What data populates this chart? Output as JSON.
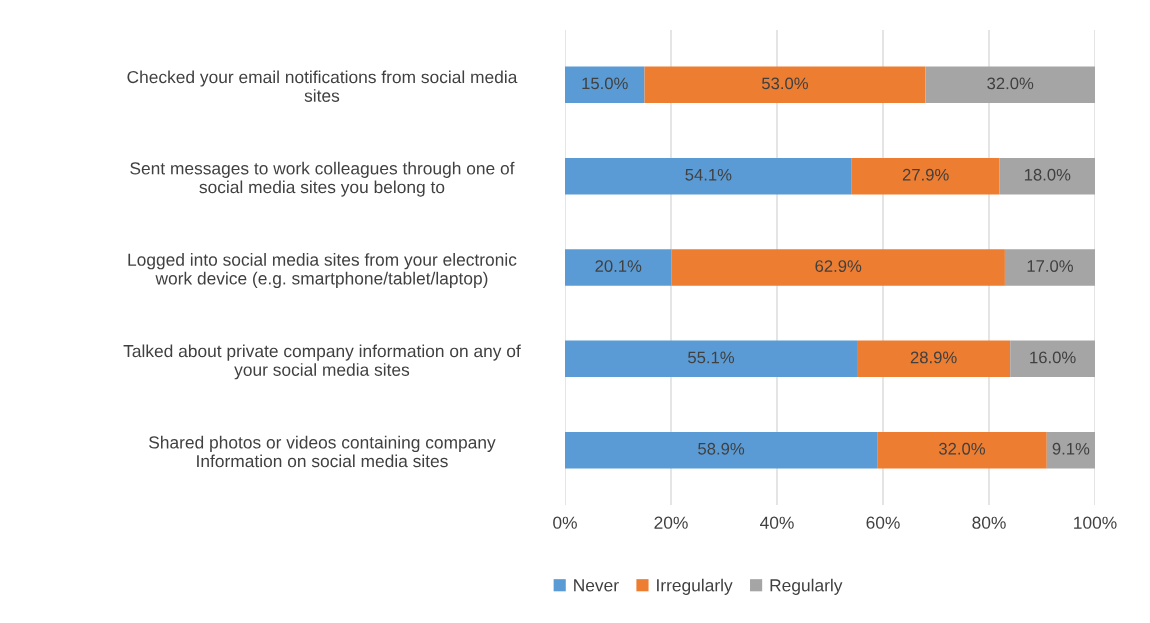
{
  "chart_data": {
    "type": "bar",
    "orientation": "horizontal",
    "stacked": true,
    "categories": [
      "Checked your email notifications from social media\nsites",
      "Sent messages to work colleagues through one of\nsocial media sites you belong to",
      "Logged into social media sites from your electronic\nwork device (e.g. smartphone/tablet/laptop)",
      "Talked about private company information on any of\nyour social media sites",
      "Shared photos or videos containing company\nInformation on social media sites"
    ],
    "series": [
      {
        "name": "Never",
        "color": "#5b9bd5",
        "values": [
          15.0,
          54.1,
          20.1,
          55.1,
          58.9
        ],
        "value_labels": [
          "15.0%",
          "54.1%",
          "20.1%",
          "55.1%",
          "58.9%"
        ]
      },
      {
        "name": "Irregularly",
        "color": "#ed7d31",
        "values": [
          53.0,
          27.9,
          62.9,
          28.9,
          32.0
        ],
        "value_labels": [
          "53.0%",
          "27.9%",
          "62.9%",
          "28.9%",
          "32.0%"
        ]
      },
      {
        "name": "Regularly",
        "color": "#a5a5a5",
        "values": [
          32.0,
          18.0,
          17.0,
          16.0,
          9.1
        ],
        "value_labels": [
          "32.0%",
          "18.0%",
          "17.0%",
          "16.0%",
          "9.1%"
        ]
      }
    ],
    "xlim": [
      0,
      100
    ],
    "xticks": [
      {
        "value": 0,
        "label": "0%"
      },
      {
        "value": 20,
        "label": "20%"
      },
      {
        "value": 40,
        "label": "40%"
      },
      {
        "value": 60,
        "label": "60%"
      },
      {
        "value": 80,
        "label": "80%"
      },
      {
        "value": 100,
        "label": "100%"
      }
    ],
    "grid": "x",
    "legend": "bottom left"
  }
}
